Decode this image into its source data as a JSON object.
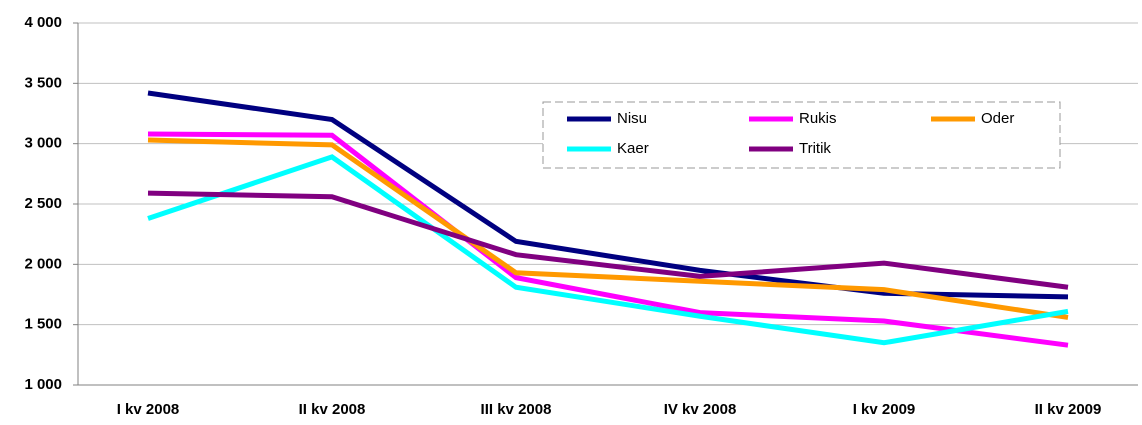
{
  "chart_data": {
    "type": "line",
    "categories": [
      "I kv 2008",
      "II kv 2008",
      "III kv 2008",
      "IV kv 2008",
      "I kv 2009",
      "II kv 2009"
    ],
    "series": [
      {
        "name": "Nisu",
        "color": "#000080",
        "values": [
          3420,
          3200,
          2190,
          1950,
          1760,
          1730
        ]
      },
      {
        "name": "Rukis",
        "color": "#ff00ff",
        "values": [
          3080,
          3070,
          1890,
          1600,
          1530,
          1330
        ]
      },
      {
        "name": "Oder",
        "color": "#ff9900",
        "values": [
          3030,
          2990,
          1930,
          1860,
          1790,
          1560
        ]
      },
      {
        "name": "Kaer",
        "color": "#00ffff",
        "values": [
          2380,
          2890,
          1810,
          1570,
          1350,
          1610
        ]
      },
      {
        "name": "Tritik",
        "color": "#800080",
        "values": [
          2590,
          2560,
          2080,
          1900,
          2010,
          1810
        ]
      }
    ],
    "ylim": [
      1000,
      4000
    ],
    "yticks": [
      {
        "value": 1000,
        "label": "1 000"
      },
      {
        "value": 1500,
        "label": "1 500"
      },
      {
        "value": 2000,
        "label": "2 000"
      },
      {
        "value": 2500,
        "label": "2 500"
      },
      {
        "value": 3000,
        "label": "3 000"
      },
      {
        "value": 3500,
        "label": "3 500"
      },
      {
        "value": 4000,
        "label": "4 000"
      }
    ],
    "grid": true,
    "legend": "upper-right"
  }
}
